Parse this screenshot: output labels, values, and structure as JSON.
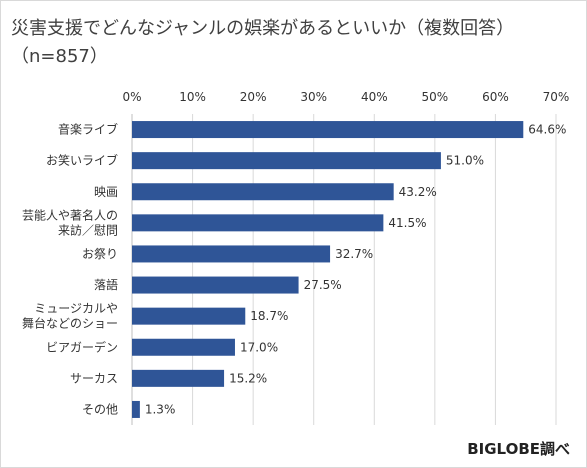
{
  "title_line1": "災害支援でどんなジャンルの娯楽があるといいか（複数回答）",
  "title_line2": "（n=857）",
  "credit": "BIGLOBE調べ",
  "colors": {
    "bar": "#2f5597",
    "grid": "#d9d9d9",
    "axis": "#bfbfbf"
  },
  "chart_data": {
    "type": "bar",
    "orientation": "horizontal",
    "title": "災害支援でどんなジャンルの娯楽があるといいか（複数回答）（n=857）",
    "categories": [
      [
        "音楽ライブ"
      ],
      [
        "お笑いライブ"
      ],
      [
        "映画"
      ],
      [
        "芸能人や著名人の",
        "来訪／慰問"
      ],
      [
        "お祭り"
      ],
      [
        "落語"
      ],
      [
        "ミュージカルや",
        "舞台などのショー"
      ],
      [
        "ビアガーデン"
      ],
      [
        "サーカス"
      ],
      [
        "その他"
      ]
    ],
    "values": [
      64.6,
      51.0,
      43.2,
      41.5,
      32.7,
      27.5,
      18.7,
      17.0,
      15.2,
      1.3
    ],
    "value_labels": [
      "64.6%",
      "51.0%",
      "43.2%",
      "41.5%",
      "32.7%",
      "27.5%",
      "18.7%",
      "17.0%",
      "15.2%",
      "1.3%"
    ],
    "xlim": [
      0,
      70
    ],
    "xticks": [
      0,
      10,
      20,
      30,
      40,
      50,
      60,
      70
    ],
    "xtick_labels": [
      "0%",
      "10%",
      "20%",
      "30%",
      "40%",
      "50%",
      "60%",
      "70%"
    ],
    "axis_position": "top",
    "grid": true,
    "legend": false
  }
}
